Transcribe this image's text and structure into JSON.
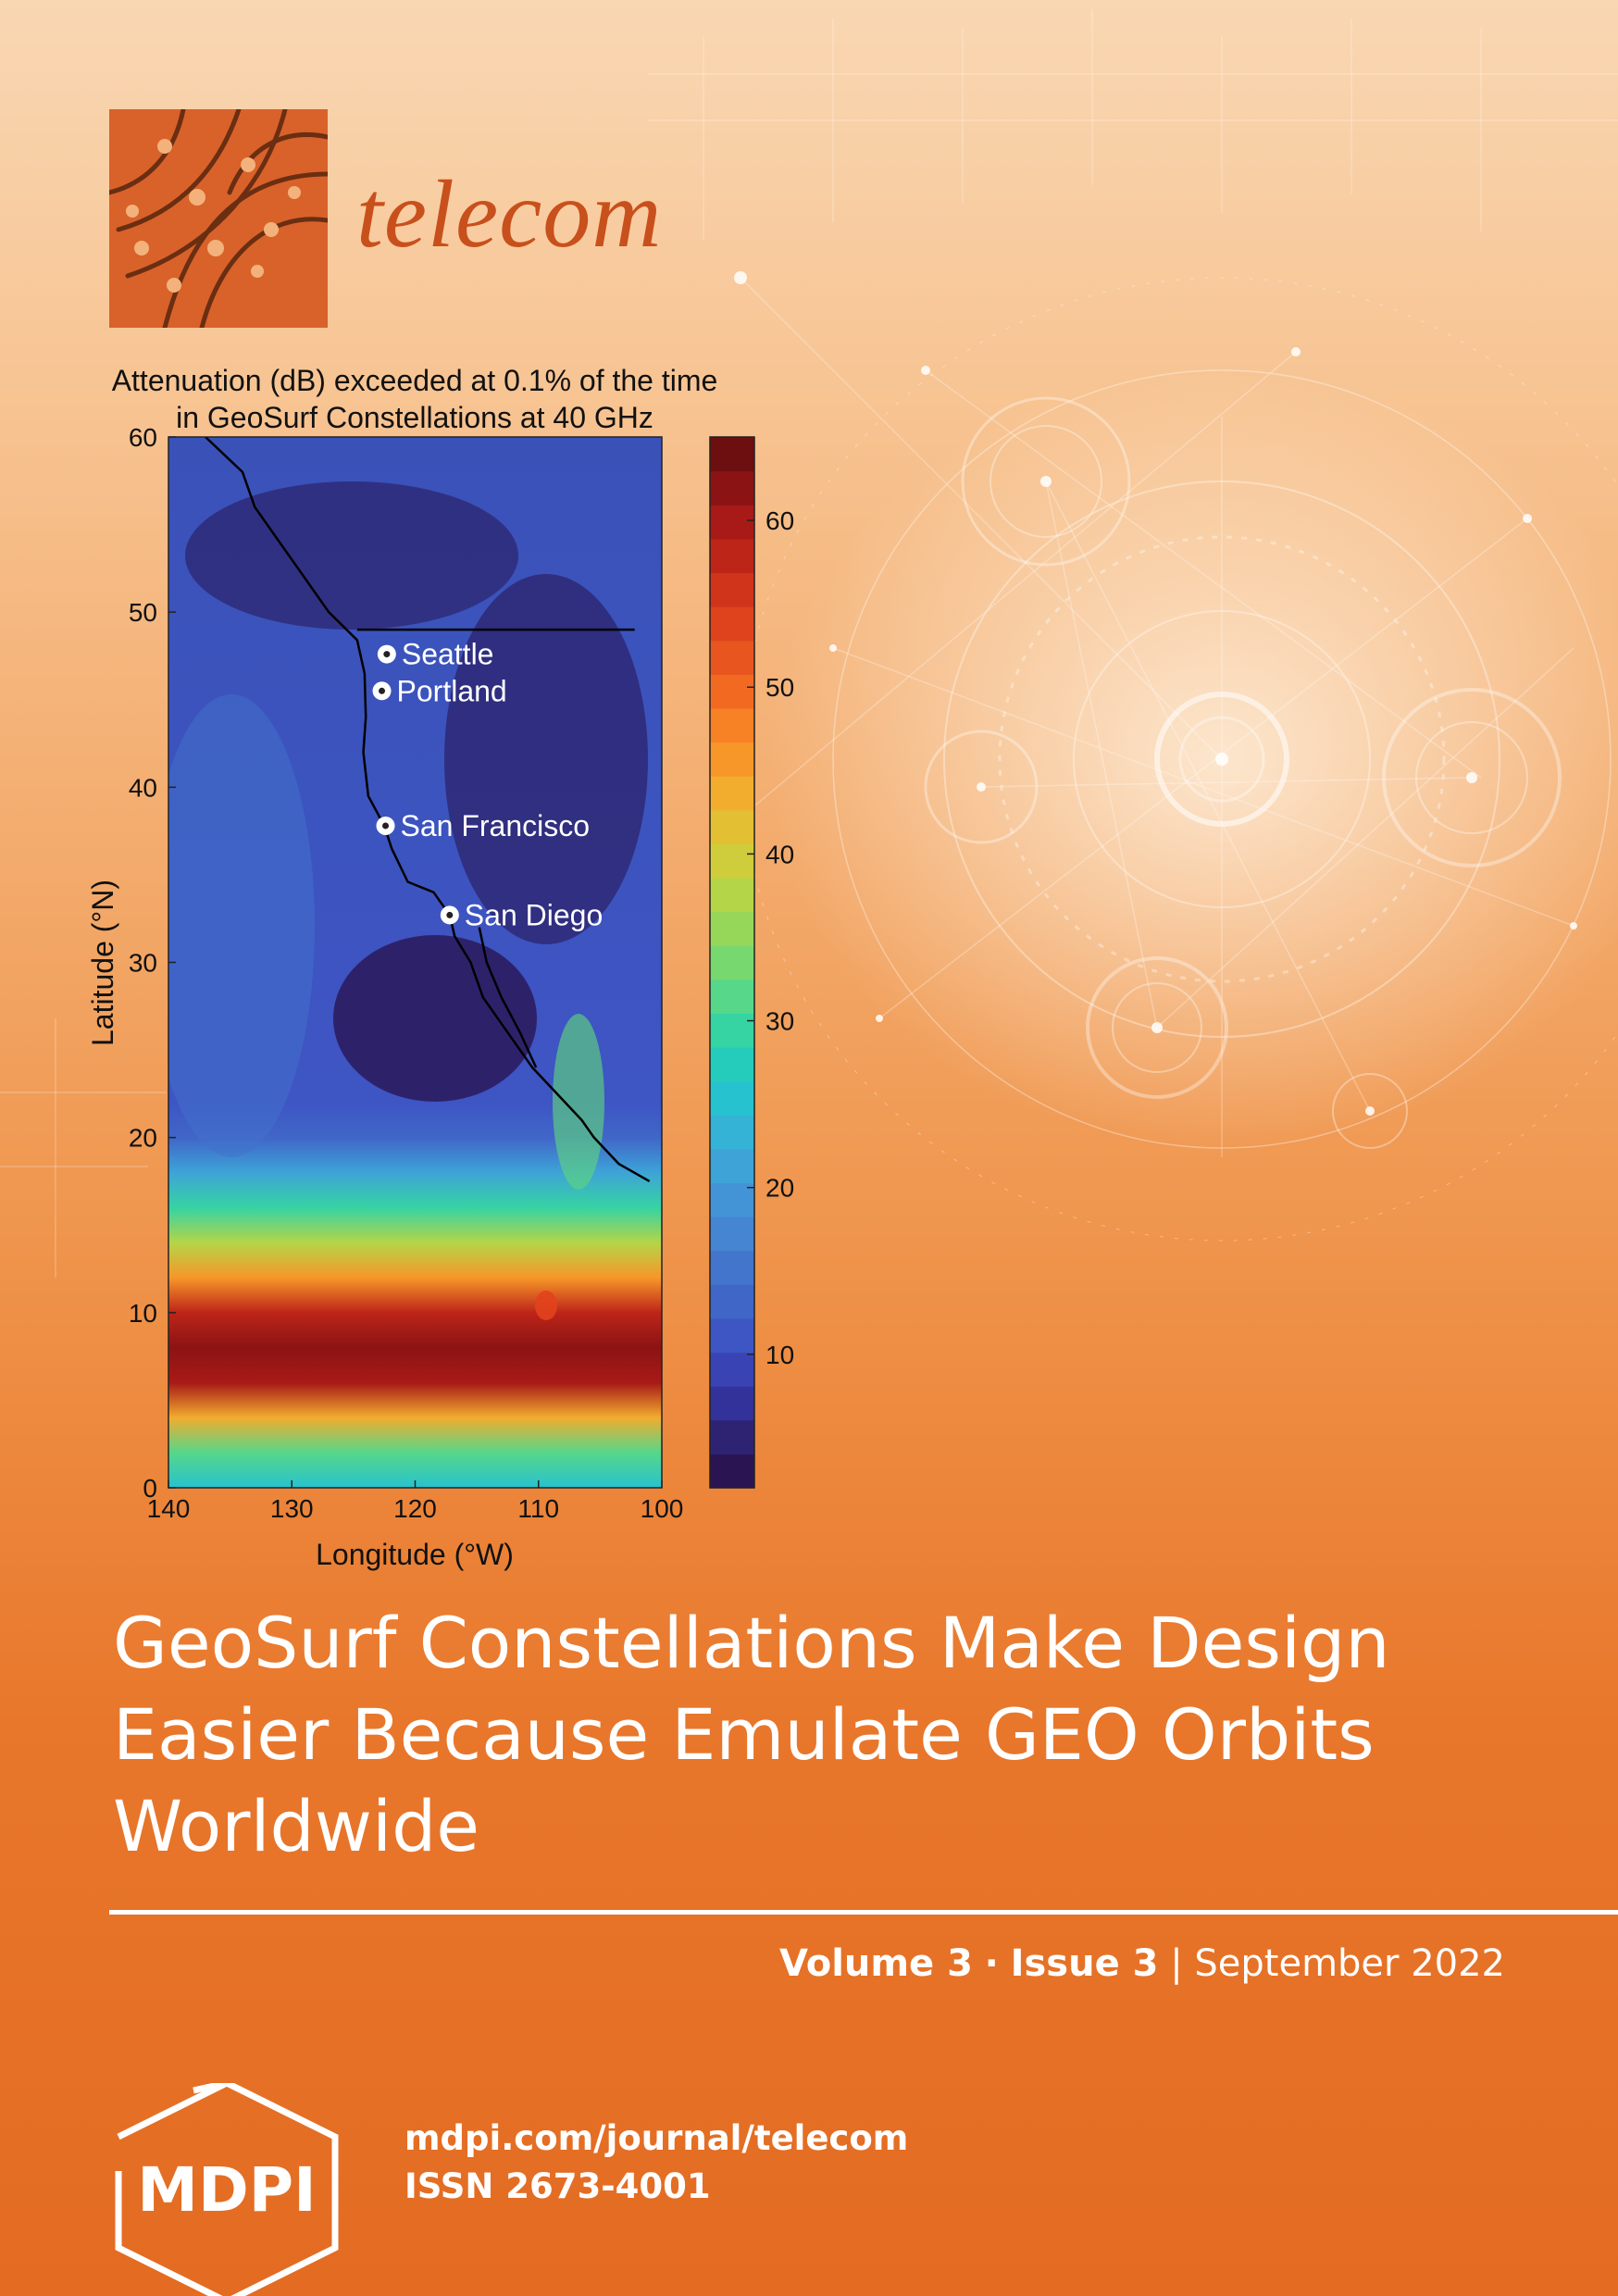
{
  "journal": {
    "name": "telecom"
  },
  "chart": {
    "title_line1": "Attenuation (dB) exceeded at 0.1% of the time",
    "title_line2": "in GeoSurf Constellations at 40 GHz",
    "xlabel": "Longitude (°W)",
    "ylabel": "Latitude (°N)",
    "colorbar_colors": [
      "#2a1552",
      "#2e2372",
      "#32329a",
      "#3a43b4",
      "#3e55c4",
      "#4066c8",
      "#4375cd",
      "#4585d2",
      "#4394d6",
      "#3ea3d7",
      "#34b3d6",
      "#27c2cf",
      "#26ccbb",
      "#36d3a3",
      "#56d78a",
      "#76d86f",
      "#96d75a",
      "#b4d548",
      "#cfcd3b",
      "#e3bf34",
      "#f2ac2e",
      "#f79729",
      "#f78125",
      "#f26a22",
      "#e8551f",
      "#de431d",
      "#d0341b",
      "#bd2519",
      "#a71a17",
      "#8c1314",
      "#6d0e10"
    ]
  },
  "chart_data": {
    "type": "heatmap",
    "title": "Attenuation (dB) exceeded at 0.1% of the time in GeoSurf Constellations at 40 GHz",
    "xlabel": "Longitude (°W)",
    "ylabel": "Latitude (°N)",
    "x_ticks": [
      140,
      130,
      120,
      110,
      100
    ],
    "y_ticks": [
      0,
      10,
      20,
      30,
      40,
      50,
      60
    ],
    "xlim": [
      140,
      100
    ],
    "ylim": [
      0,
      60
    ],
    "colorbar_ticks": [
      10,
      20,
      30,
      40,
      50,
      60
    ],
    "colorbar_range": [
      2,
      65
    ],
    "latitude_profile": [
      {
        "lat": 0,
        "db": 25
      },
      {
        "lat": 2,
        "db": 32
      },
      {
        "lat": 4,
        "db": 45
      },
      {
        "lat": 6,
        "db": 60
      },
      {
        "lat": 8,
        "db": 63
      },
      {
        "lat": 10,
        "db": 58
      },
      {
        "lat": 12,
        "db": 47
      },
      {
        "lat": 14,
        "db": 38
      },
      {
        "lat": 16,
        "db": 30
      },
      {
        "lat": 18,
        "db": 20
      },
      {
        "lat": 20,
        "db": 13
      },
      {
        "lat": 22,
        "db": 10
      }
    ],
    "cities": [
      {
        "name": "Seattle",
        "lon": 122.3,
        "lat": 47.6
      },
      {
        "name": "Portland",
        "lon": 122.7,
        "lat": 45.5
      },
      {
        "name": "San Francisco",
        "lon": 122.4,
        "lat": 37.8
      },
      {
        "name": "San Diego",
        "lon": 117.2,
        "lat": 32.7
      }
    ],
    "coastline": [
      [
        137,
        60
      ],
      [
        134,
        58
      ],
      [
        133,
        56
      ],
      [
        131,
        54
      ],
      [
        129,
        52
      ],
      [
        127,
        50
      ],
      [
        124.7,
        48.4
      ],
      [
        124.1,
        46.5
      ],
      [
        124,
        44
      ],
      [
        124.2,
        42
      ],
      [
        123.8,
        39.5
      ],
      [
        122.5,
        37.8
      ],
      [
        121.9,
        36.5
      ],
      [
        120.6,
        34.6
      ],
      [
        118.5,
        34
      ],
      [
        117.2,
        32.7
      ],
      [
        116.8,
        31.5
      ],
      [
        115.5,
        30
      ],
      [
        114.5,
        28
      ],
      [
        112.5,
        26
      ],
      [
        110.5,
        24
      ],
      [
        108.5,
        22.5
      ],
      [
        106.5,
        21
      ],
      [
        105.5,
        20
      ],
      [
        103.5,
        18.5
      ],
      [
        101,
        17.5
      ]
    ],
    "baja_inner_coast": [
      [
        114.8,
        32
      ],
      [
        114.2,
        30
      ],
      [
        113,
        28
      ],
      [
        111.5,
        26
      ],
      [
        110.2,
        24
      ]
    ],
    "border": [
      [
        124.7,
        49
      ],
      [
        102.2,
        49
      ]
    ]
  },
  "title": {
    "line1": "GeoSurf Constellations Make Design",
    "line2": "Easier Because Emulate GEO Orbits",
    "line3": "Worldwide"
  },
  "issue": {
    "volume": "Volume 3",
    "sep": "·",
    "issue": "Issue 3",
    "divider": "|",
    "date": "September 2022"
  },
  "publisher": {
    "logo_text": "MDPI",
    "url": "mdpi.com/journal/telecom",
    "issn": "ISSN 2673-4001"
  }
}
